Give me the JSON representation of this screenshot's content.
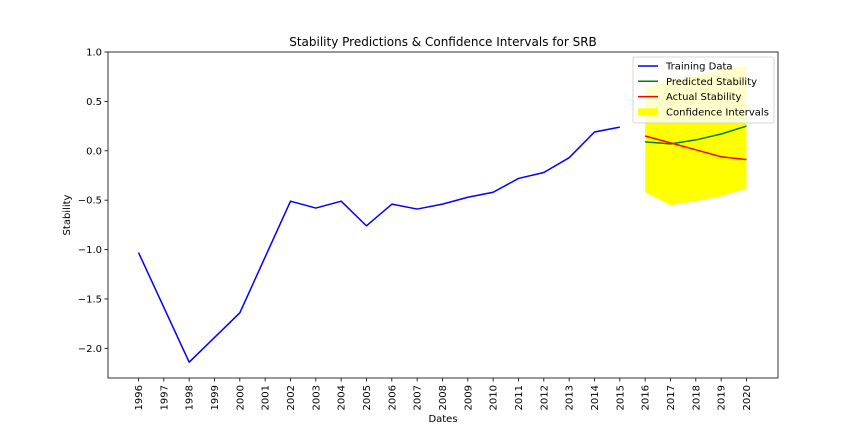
{
  "chart_data": {
    "type": "line",
    "title": "Stability Predictions & Confidence Intervals for SRB",
    "xlabel": "Dates",
    "ylabel": "Stability",
    "ylim": [
      -2.3,
      1.0
    ],
    "yticks": [
      1.0,
      0.5,
      0.0,
      -0.5,
      -1.0,
      -1.5,
      -2.0
    ],
    "ytick_labels": [
      "1.0",
      "0.5",
      "0.0",
      "−0.5",
      "−1.0",
      "−1.5",
      "−2.0"
    ],
    "categories": [
      "1996",
      "1997",
      "1998",
      "1999",
      "2000",
      "2001",
      "2002",
      "2003",
      "2004",
      "2005",
      "2006",
      "2007",
      "2008",
      "2009",
      "2010",
      "2011",
      "2012",
      "2013",
      "2014",
      "2015",
      "2016",
      "2017",
      "2018",
      "2019",
      "2020"
    ],
    "legend_position": "top-right",
    "series": [
      {
        "name": "Training Data",
        "color": "#0000ff",
        "x": [
          "1996",
          "1998",
          "2000",
          "2002",
          "2003",
          "2004",
          "2005",
          "2006",
          "2007",
          "2008",
          "2009",
          "2010",
          "2011",
          "2012",
          "2013",
          "2014",
          "2015"
        ],
        "values": [
          -1.03,
          -2.14,
          -1.64,
          -0.51,
          -0.58,
          -0.51,
          -0.76,
          -0.54,
          -0.59,
          -0.54,
          -0.47,
          -0.42,
          -0.28,
          -0.22,
          -0.07,
          0.19,
          0.24
        ]
      },
      {
        "name": "Predicted Stability",
        "color": "#008000",
        "x": [
          "2016",
          "2017",
          "2018",
          "2019",
          "2020"
        ],
        "values": [
          0.09,
          0.07,
          0.11,
          0.17,
          0.25
        ]
      },
      {
        "name": "Actual Stability",
        "color": "#ff0000",
        "x": [
          "2016",
          "2017",
          "2018",
          "2019",
          "2020"
        ],
        "values": [
          0.15,
          0.08,
          0.01,
          -0.06,
          -0.09
        ]
      }
    ],
    "confidence_interval": {
      "name": "Confidence Intervals",
      "color": "#ffff00",
      "x": [
        "2016",
        "2017",
        "2018",
        "2019",
        "2020"
      ],
      "lower": [
        -0.42,
        -0.55,
        -0.51,
        -0.46,
        -0.38
      ],
      "upper": [
        0.64,
        0.72,
        0.76,
        0.82,
        0.86
      ]
    }
  }
}
